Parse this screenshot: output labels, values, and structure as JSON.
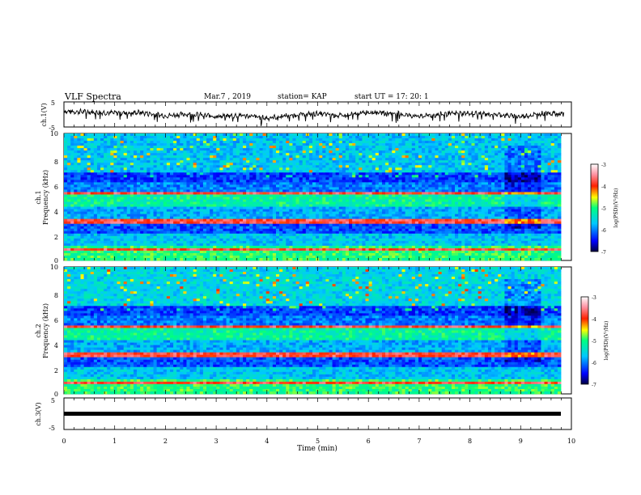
{
  "header": {
    "title": "VLF Spectra",
    "date": "Mar.7 , 2019",
    "station": "station= KAP",
    "start": "start UT = 17: 20: 1"
  },
  "chart_data": [
    {
      "type": "line",
      "panel": "ch1-waveform",
      "ylabel": "ch.1(V)",
      "ylim": [
        -5,
        5
      ],
      "yticks": [
        "5",
        "-5"
      ],
      "x_unit": "min",
      "xlim": [
        0,
        10
      ],
      "series": [
        {
          "x": [
            0,
            0.5,
            1,
            1.5,
            2,
            2.5,
            3,
            3.5,
            4,
            4.5,
            5,
            5.5,
            6,
            6.5,
            7,
            7.5,
            8,
            8.5,
            9,
            9.5,
            9.85
          ],
          "y": [
            1.2,
            1.0,
            0.6,
            0.8,
            -0.5,
            0.2,
            -0.8,
            -0.3,
            -1.5,
            -0.2,
            0.3,
            -0.6,
            1.0,
            0.4,
            -0.8,
            0.2,
            0.5,
            0.0,
            -0.9,
            0.6,
            0.3
          ]
        }
      ],
      "color": "#000000"
    },
    {
      "type": "heatmap",
      "panel": "ch1-spectrogram",
      "ylabel": "ch.1\nFrequency (kHz)",
      "ylim": [
        0,
        10
      ],
      "yticks": [
        "0",
        "2",
        "4",
        "6",
        "8",
        "10"
      ],
      "xlim": [
        0,
        10
      ],
      "colorbar": {
        "label": "log(PSD)(V²/Hz)",
        "range": [
          -7,
          -3
        ],
        "ticks": [
          "-3",
          "-4",
          "-5",
          "-6",
          "-7"
        ]
      }
    },
    {
      "type": "heatmap",
      "panel": "ch2-spectrogram",
      "ylabel": "ch.2\nFrequency (kHz)",
      "ylim": [
        0,
        10
      ],
      "yticks": [
        "0",
        "2",
        "4",
        "6",
        "8",
        "10"
      ],
      "xlim": [
        0,
        10
      ],
      "colorbar": {
        "label": "log(PSD)(V²/Hz)",
        "range": [
          -7,
          -3
        ],
        "ticks": [
          "-3",
          "-4",
          "-5",
          "-6",
          "-7"
        ]
      }
    },
    {
      "type": "line",
      "panel": "ch3-waveform",
      "ylabel": "ch.3(V)",
      "ylim": [
        -5,
        5
      ],
      "yticks": [
        "5",
        "-5"
      ],
      "xlim": [
        0,
        10
      ],
      "series": [
        {
          "x": [
            0,
            9.85
          ],
          "y": [
            0,
            0
          ]
        }
      ],
      "color": "#000000"
    }
  ],
  "x_axis": {
    "label": "Time (min)",
    "ticks": [
      "0",
      "1",
      "2",
      "3",
      "4",
      "5",
      "6",
      "7",
      "8",
      "9",
      "10"
    ]
  }
}
